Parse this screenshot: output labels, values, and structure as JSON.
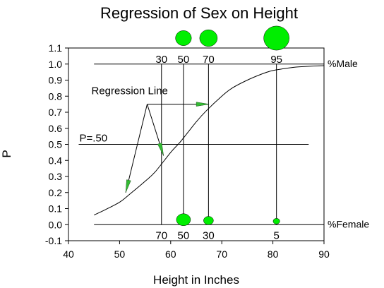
{
  "chart_data": {
    "type": "line",
    "title": "Regression of Sex on Height",
    "xlabel": "Height in Inches",
    "ylabel": "P",
    "xlim": [
      40,
      90
    ],
    "ylim": [
      -0.1,
      1.1
    ],
    "x_ticks": [
      40,
      50,
      60,
      70,
      80,
      90
    ],
    "x_tick_labels": [
      "40",
      "50",
      "60",
      "70",
      "80",
      "90"
    ],
    "y_ticks": [
      -0.1,
      0.0,
      0.1,
      0.2,
      0.3,
      0.4,
      0.5,
      0.6,
      0.7,
      0.8,
      0.9,
      1.0,
      1.1
    ],
    "y_tick_labels": [
      "-0.1",
      "0.0",
      "0.1",
      "0.2",
      "0.3",
      "0.4",
      "0.5",
      "0.6",
      "0.7",
      "0.8",
      "0.9",
      "1.0",
      "1.1"
    ],
    "grid": false,
    "regression_curve": {
      "x": [
        45,
        47,
        50,
        52,
        55,
        57,
        60,
        62,
        65,
        67,
        70,
        72,
        75,
        78,
        80,
        83,
        85,
        88,
        90
      ],
      "y": [
        0.06,
        0.09,
        0.14,
        0.19,
        0.27,
        0.33,
        0.45,
        0.52,
        0.64,
        0.71,
        0.8,
        0.85,
        0.9,
        0.94,
        0.96,
        0.975,
        0.982,
        0.988,
        0.99
      ]
    },
    "reference_lines": [
      {
        "y": 1.0,
        "x_range": [
          45,
          90
        ],
        "label": "%Male"
      },
      {
        "y": 0.0,
        "x_range": [
          45,
          90
        ],
        "label": "%Female"
      },
      {
        "y": 0.5,
        "x_range": [
          42,
          87
        ],
        "label": "P=.50"
      }
    ],
    "vertical_lines": [
      {
        "x": 58.2,
        "y_range": [
          0.0,
          1.0
        ]
      },
      {
        "x": 62.5,
        "y_range": [
          0.0,
          1.0
        ]
      },
      {
        "x": 67.4,
        "y_range": [
          0.0,
          1.0
        ]
      },
      {
        "x": 80.7,
        "y_range": [
          0.0,
          1.0
        ]
      }
    ],
    "male_groups": [
      {
        "x": 58.2,
        "label": "30",
        "size": 0
      },
      {
        "x": 62.5,
        "label": "50",
        "size": 0.45
      },
      {
        "x": 67.4,
        "label": "70",
        "size": 0.55
      },
      {
        "x": 80.7,
        "label": "95",
        "size": 1.0
      }
    ],
    "female_groups": [
      {
        "x": 58.2,
        "label": "70",
        "size": 0
      },
      {
        "x": 62.5,
        "label": "50",
        "size": 0.5
      },
      {
        "x": 67.4,
        "label": "30",
        "size": 0.3
      },
      {
        "x": 80.7,
        "label": "5",
        "size": 0.15
      }
    ],
    "annotation": {
      "text": "Regression Line",
      "origin": {
        "x": 55.4,
        "y": 0.75
      },
      "targets": [
        {
          "x": 51.2,
          "y": 0.2
        },
        {
          "x": 58.6,
          "y": 0.43
        },
        {
          "x": 67.5,
          "y": 0.75
        }
      ]
    },
    "colors": {
      "marker": "#00ee00",
      "line": "#000000",
      "arrow": "#33bb33"
    }
  }
}
